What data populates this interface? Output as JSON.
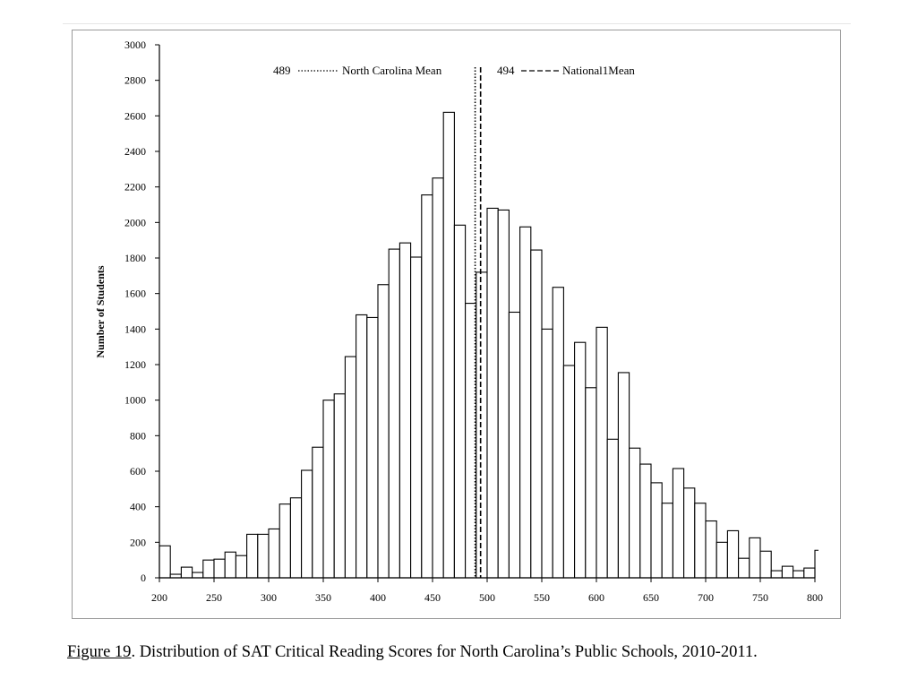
{
  "chart_data": {
    "type": "bar",
    "ylabel": "Number of Students",
    "xlabel": "",
    "xlim": [
      200,
      800
    ],
    "ylim": [
      0,
      3000
    ],
    "yticks": [
      0,
      200,
      400,
      600,
      800,
      1000,
      1200,
      1400,
      1600,
      1800,
      2000,
      2200,
      2400,
      2600,
      2800,
      3000
    ],
    "xticks": [
      200,
      250,
      300,
      350,
      400,
      450,
      500,
      550,
      600,
      650,
      700,
      750,
      800
    ],
    "bin_width": 10,
    "bin_starts": [
      200,
      210,
      220,
      230,
      240,
      250,
      260,
      270,
      280,
      290,
      300,
      310,
      320,
      330,
      340,
      350,
      360,
      370,
      380,
      390,
      400,
      410,
      420,
      430,
      440,
      450,
      460,
      470,
      480,
      490,
      500,
      510,
      520,
      530,
      540,
      550,
      560,
      570,
      580,
      590,
      600,
      610,
      620,
      630,
      640,
      650,
      660,
      670,
      680,
      690,
      700,
      710,
      720,
      730,
      740,
      750,
      760,
      770,
      780,
      790
    ],
    "values": [
      180,
      20,
      60,
      30,
      100,
      105,
      145,
      125,
      245,
      245,
      275,
      415,
      450,
      605,
      735,
      1000,
      1035,
      1245,
      1480,
      1465,
      1650,
      1850,
      1885,
      1805,
      2155,
      2250,
      2620,
      1985,
      1545,
      1720,
      2080,
      2070,
      1495,
      1975,
      1845,
      1400,
      1635,
      1195,
      1325,
      1070,
      1410,
      780,
      1155,
      730,
      640,
      535,
      420,
      615,
      505,
      420,
      320,
      200,
      265,
      110,
      225,
      150,
      40,
      65,
      40,
      55
    ],
    "last_bar_value": 155,
    "grid": false,
    "annotations": [
      {
        "label": "North Carolina Mean",
        "value": 489,
        "value_text": "489",
        "style": "dotted"
      },
      {
        "label": "National1Mean",
        "value": 494,
        "value_text": "494",
        "style": "dashed"
      }
    ]
  },
  "caption": {
    "figure_label": "Figure 19",
    "text": ". Distribution of SAT Critical Reading Scores for North Carolina’s Public Schools, 2010-2011."
  }
}
